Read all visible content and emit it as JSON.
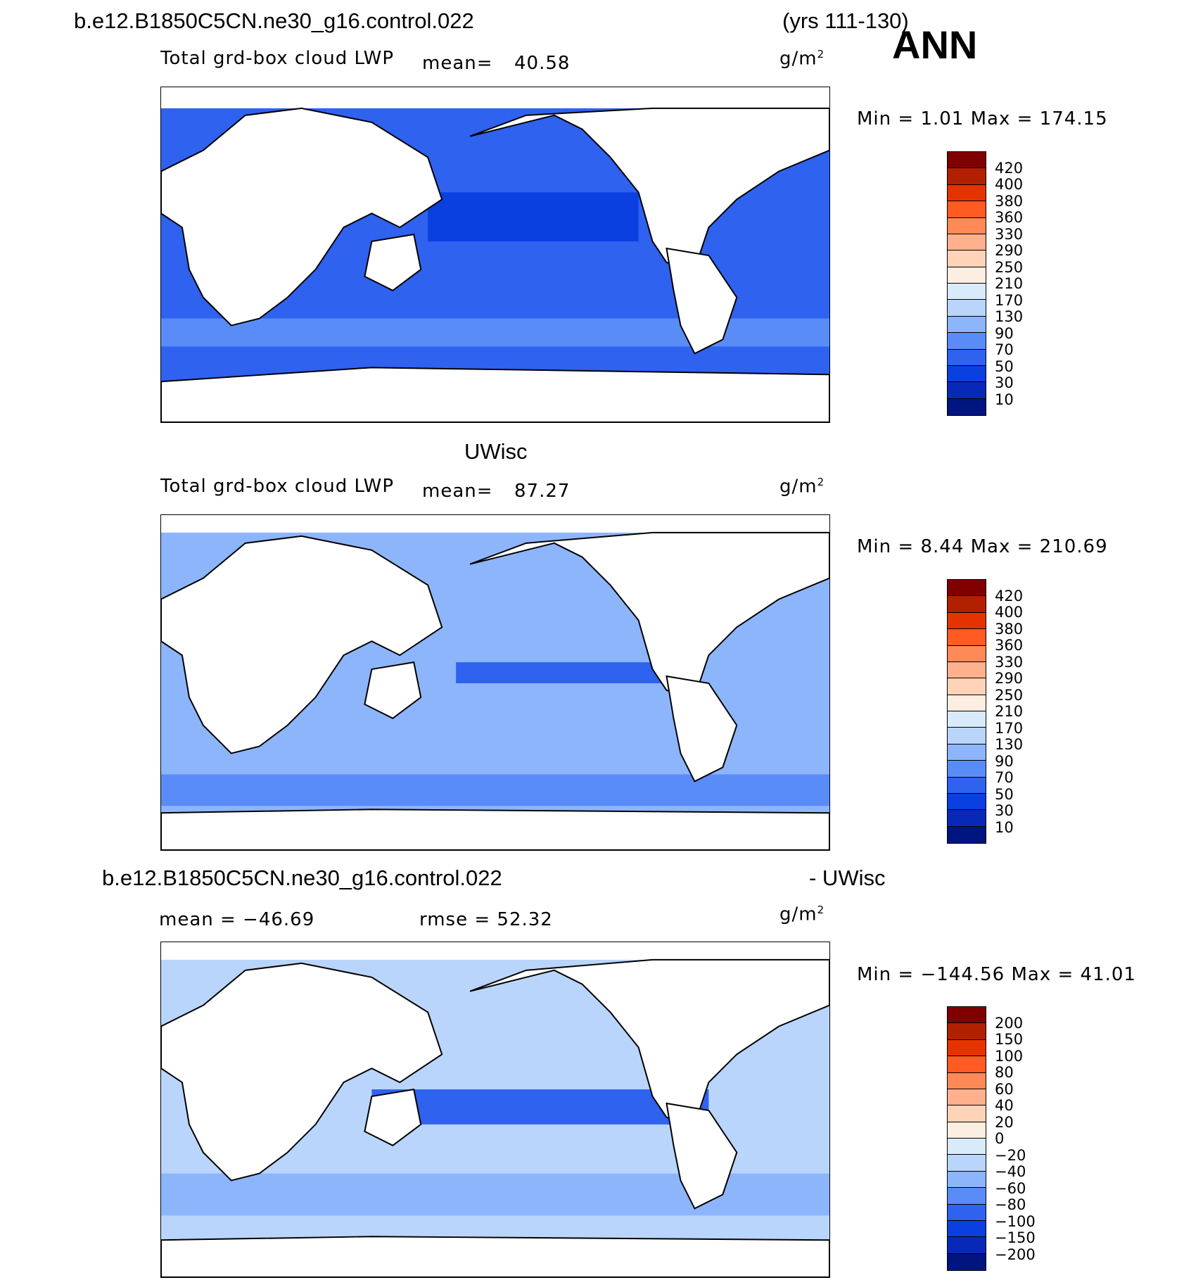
{
  "header": {
    "case_name": "b.e12.B1850C5CN.ne30_g16.control.022",
    "years": "(yrs 111-130)",
    "season": "ANN"
  },
  "panels": [
    {
      "title": "",
      "variable": "Total grd-box cloud LWP",
      "mean_label": "mean=",
      "mean_value": "40.58",
      "units": "g/m",
      "units_sup": "2",
      "minmax": "Min =     1.01  Max  =  174.15",
      "colorbar": [
        "420",
        "400",
        "380",
        "360",
        "330",
        "290",
        "250",
        "210",
        "170",
        "130",
        "90",
        "70",
        "50",
        "30",
        "10"
      ],
      "colors": [
        "#800000",
        "#b22000",
        "#e53300",
        "#ff5b22",
        "#ff8a57",
        "#ffb08c",
        "#ffd3b8",
        "#fdeee2",
        "#d9ebfa",
        "#b9d5fb",
        "#8db5fb",
        "#5a8cf8",
        "#2e62ef",
        "#0a3fe0",
        "#0829b8",
        "#001580"
      ]
    },
    {
      "title": "UWisc",
      "variable": "Total grd-box cloud LWP",
      "mean_label": "mean=",
      "mean_value": "87.27",
      "units": "g/m",
      "units_sup": "2",
      "minmax": "Min =     8.44  Max  =  210.69",
      "colorbar": [
        "420",
        "400",
        "380",
        "360",
        "330",
        "290",
        "250",
        "210",
        "170",
        "130",
        "90",
        "70",
        "50",
        "30",
        "10"
      ],
      "colors": [
        "#800000",
        "#b22000",
        "#e53300",
        "#ff5b22",
        "#ff8a57",
        "#ffb08c",
        "#ffd3b8",
        "#fdeee2",
        "#d9ebfa",
        "#b9d5fb",
        "#8db5fb",
        "#5a8cf8",
        "#2e62ef",
        "#0a3fe0",
        "#0829b8",
        "#001580"
      ]
    },
    {
      "title_left": "b.e12.B1850C5CN.ne30_g16.control.022",
      "title_right": "- UWisc",
      "mean_text": "mean  =  −46.69",
      "rmse_text": "rmse  =    52.32",
      "units": "g/m",
      "units_sup": "2",
      "minmax": "Min  =  −144.56  Max  =    41.01",
      "colorbar": [
        "200",
        "150",
        "100",
        "80",
        "60",
        "40",
        "20",
        "0",
        "−20",
        "−40",
        "−60",
        "−80",
        "−100",
        "−150",
        "−200"
      ],
      "colors": [
        "#800000",
        "#b22000",
        "#e53300",
        "#ff5b22",
        "#ff8a57",
        "#ffb08c",
        "#ffd3b8",
        "#fdeee2",
        "#d9ebfa",
        "#b9d5fb",
        "#8db5fb",
        "#5a8cf8",
        "#2e62ef",
        "#0a3fe0",
        "#0829b8",
        "#001580"
      ]
    }
  ],
  "map_fill": {
    "panel1": {
      "ocean": "#2e62ef",
      "ocean_dark": "#0a3fe0",
      "band": "#5a8cf8"
    },
    "panel2": {
      "ocean": "#8db5fb",
      "ocean_dark": "#2e62ef",
      "band": "#5a8cf8"
    },
    "panel3": {
      "ocean": "#b9d5fb",
      "ocean_dark": "#2e62ef",
      "band": "#8db5fb"
    }
  }
}
